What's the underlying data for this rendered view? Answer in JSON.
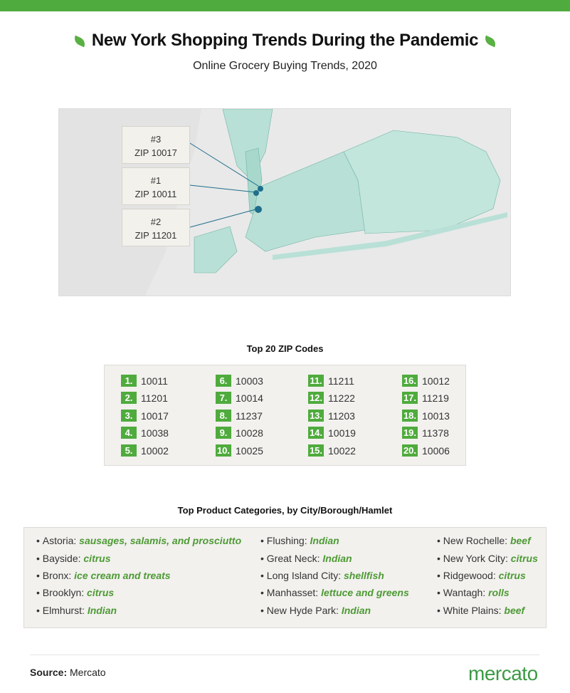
{
  "title": "New York Shopping Trends During the Pandemic",
  "subtitle": "Online Grocery Buying Trends, 2020",
  "colors": {
    "brand_green": "#4fab3d",
    "map_fill": "#b9e0d6",
    "highlight": "#1f6e8c"
  },
  "map": {
    "callouts": [
      {
        "rank": "#3",
        "zip": "ZIP 10017"
      },
      {
        "rank": "#1",
        "zip": "ZIP 10011"
      },
      {
        "rank": "#2",
        "zip": "ZIP 11201"
      }
    ]
  },
  "zip_section": {
    "heading": "Top 20 ZIP Codes",
    "items": [
      {
        "rank": "1.",
        "zip": "10011"
      },
      {
        "rank": "2.",
        "zip": "11201"
      },
      {
        "rank": "3.",
        "zip": "10017"
      },
      {
        "rank": "4.",
        "zip": "10038"
      },
      {
        "rank": "5.",
        "zip": "10002"
      },
      {
        "rank": "6.",
        "zip": "10003"
      },
      {
        "rank": "7.",
        "zip": "10014"
      },
      {
        "rank": "8.",
        "zip": "11237"
      },
      {
        "rank": "9.",
        "zip": "10028"
      },
      {
        "rank": "10.",
        "zip": "10025"
      },
      {
        "rank": "11.",
        "zip": "11211"
      },
      {
        "rank": "12.",
        "zip": "11222"
      },
      {
        "rank": "13.",
        "zip": "11203"
      },
      {
        "rank": "14.",
        "zip": "10019"
      },
      {
        "rank": "15.",
        "zip": "10022"
      },
      {
        "rank": "16.",
        "zip": "10012"
      },
      {
        "rank": "17.",
        "zip": "11219"
      },
      {
        "rank": "18.",
        "zip": "10013"
      },
      {
        "rank": "19.",
        "zip": "11378"
      },
      {
        "rank": "20.",
        "zip": "10006"
      }
    ]
  },
  "category_section": {
    "heading": "Top Product Categories, by City/Borough/Hamlet",
    "items": [
      {
        "place": "Astoria:",
        "category": "sausages, salamis, and prosciutto"
      },
      {
        "place": "Bayside:",
        "category": "citrus"
      },
      {
        "place": "Bronx:",
        "category": "ice cream and treats"
      },
      {
        "place": "Brooklyn:",
        "category": "citrus"
      },
      {
        "place": "Elmhurst:",
        "category": "Indian"
      },
      {
        "place": "Flushing:",
        "category": "Indian"
      },
      {
        "place": "Great Neck:",
        "category": "Indian"
      },
      {
        "place": "Long Island City:",
        "category": "shellfish"
      },
      {
        "place": "Manhasset:",
        "category": "lettuce and greens"
      },
      {
        "place": "New Hyde Park:",
        "category": "Indian"
      },
      {
        "place": "New Rochelle:",
        "category": "beef"
      },
      {
        "place": "New York City:",
        "category": "citrus"
      },
      {
        "place": "Ridgewood:",
        "category": "citrus"
      },
      {
        "place": "Wantagh:",
        "category": "rolls"
      },
      {
        "place": "White Plains:",
        "category": "beef"
      }
    ]
  },
  "footer": {
    "source_label": "Source:",
    "source_value": "Mercato",
    "logo_text": "mercato"
  }
}
